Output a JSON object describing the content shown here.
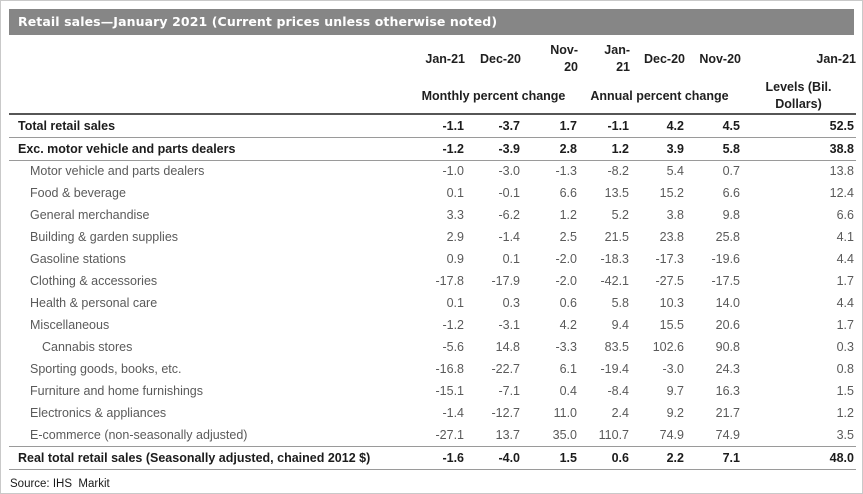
{
  "title": "Retail sales—January 2021 (Current prices unless otherwise noted)",
  "source": "Source: IHS  Markit",
  "colors": {
    "title_bar_bg": "#868686",
    "title_text": "#ffffff",
    "header_text": "#1f1f1f",
    "body_text": "#5a5a5a",
    "bold_row_text": "#1c1c1c",
    "rule_dark": "#565656",
    "rule_light": "#9a9a9a"
  },
  "chart_data": {
    "type": "table",
    "title": "Retail sales—January 2021 (Current prices unless otherwise noted)",
    "period_headers": [
      "Jan-21",
      "Dec-20",
      "Nov-\n20",
      "Jan-\n21",
      "Dec-20",
      "Nov-20",
      "Jan-21"
    ],
    "column_groups": [
      "Monthly percent change",
      "Annual percent change",
      "Levels (Bil.\nDollars)"
    ],
    "columns": [
      "Jan-21 monthly % chg",
      "Dec-20 monthly % chg",
      "Nov-20 monthly % chg",
      "Jan-21 annual % chg",
      "Dec-20 annual % chg",
      "Nov-20 annual % chg",
      "Jan-21 levels (Bil. Dollars)"
    ],
    "rows": [
      {
        "label": "Total retail sales",
        "emphasis": true,
        "indent": 0,
        "values": [
          "-1.1",
          "-3.7",
          "1.7",
          "-1.1",
          "4.2",
          "4.5",
          "52.5"
        ]
      },
      {
        "label": "Exc. motor vehicle and parts dealers",
        "emphasis": true,
        "indent": 0,
        "values": [
          "-1.2",
          "-3.9",
          "2.8",
          "1.2",
          "3.9",
          "5.8",
          "38.8"
        ]
      },
      {
        "label": "Motor vehicle and parts dealers",
        "emphasis": false,
        "indent": 1,
        "values": [
          "-1.0",
          "-3.0",
          "-1.3",
          "-8.2",
          "5.4",
          "0.7",
          "13.8"
        ]
      },
      {
        "label": "Food & beverage",
        "emphasis": false,
        "indent": 1,
        "values": [
          "0.1",
          "-0.1",
          "6.6",
          "13.5",
          "15.2",
          "6.6",
          "12.4"
        ]
      },
      {
        "label": "General merchandise",
        "emphasis": false,
        "indent": 1,
        "values": [
          "3.3",
          "-6.2",
          "1.2",
          "5.2",
          "3.8",
          "9.8",
          "6.6"
        ]
      },
      {
        "label": "Building & garden supplies",
        "emphasis": false,
        "indent": 1,
        "values": [
          "2.9",
          "-1.4",
          "2.5",
          "21.5",
          "23.8",
          "25.8",
          "4.1"
        ]
      },
      {
        "label": "Gasoline stations",
        "emphasis": false,
        "indent": 1,
        "values": [
          "0.9",
          "0.1",
          "-2.0",
          "-18.3",
          "-17.3",
          "-19.6",
          "4.4"
        ]
      },
      {
        "label": "Clothing & accessories",
        "emphasis": false,
        "indent": 1,
        "values": [
          "-17.8",
          "-17.9",
          "-2.0",
          "-42.1",
          "-27.5",
          "-17.5",
          "1.7"
        ]
      },
      {
        "label": "Health & personal care",
        "emphasis": false,
        "indent": 1,
        "values": [
          "0.1",
          "0.3",
          "0.6",
          "5.8",
          "10.3",
          "14.0",
          "4.4"
        ]
      },
      {
        "label": "Miscellaneous",
        "emphasis": false,
        "indent": 1,
        "values": [
          "-1.2",
          "-3.1",
          "4.2",
          "9.4",
          "15.5",
          "20.6",
          "1.7"
        ]
      },
      {
        "label": "Cannabis stores",
        "emphasis": false,
        "indent": 2,
        "values": [
          "-5.6",
          "14.8",
          "-3.3",
          "83.5",
          "102.6",
          "90.8",
          "0.3"
        ]
      },
      {
        "label": "Sporting goods, books, etc.",
        "emphasis": false,
        "indent": 1,
        "values": [
          "-16.8",
          "-22.7",
          "6.1",
          "-19.4",
          "-3.0",
          "24.3",
          "0.8"
        ]
      },
      {
        "label": "Furniture and home furnishings",
        "emphasis": false,
        "indent": 1,
        "values": [
          "-15.1",
          "-7.1",
          "0.4",
          "-8.4",
          "9.7",
          "16.3",
          "1.5"
        ]
      },
      {
        "label": "Electronics & appliances",
        "emphasis": false,
        "indent": 1,
        "values": [
          "-1.4",
          "-12.7",
          "11.0",
          "2.4",
          "9.2",
          "21.7",
          "1.2"
        ]
      },
      {
        "label": "E-commerce (non-seasonally adjusted)",
        "emphasis": false,
        "indent": 1,
        "values": [
          "-27.1",
          "13.7",
          "35.0",
          "110.7",
          "74.9",
          "74.9",
          "3.5"
        ]
      },
      {
        "label": "Real total retail sales (Seasonally adjusted, chained 2012 $)",
        "emphasis": true,
        "indent": 0,
        "values": [
          "-1.6",
          "-4.0",
          "1.5",
          "0.6",
          "2.2",
          "7.1",
          "48.0"
        ]
      }
    ]
  }
}
